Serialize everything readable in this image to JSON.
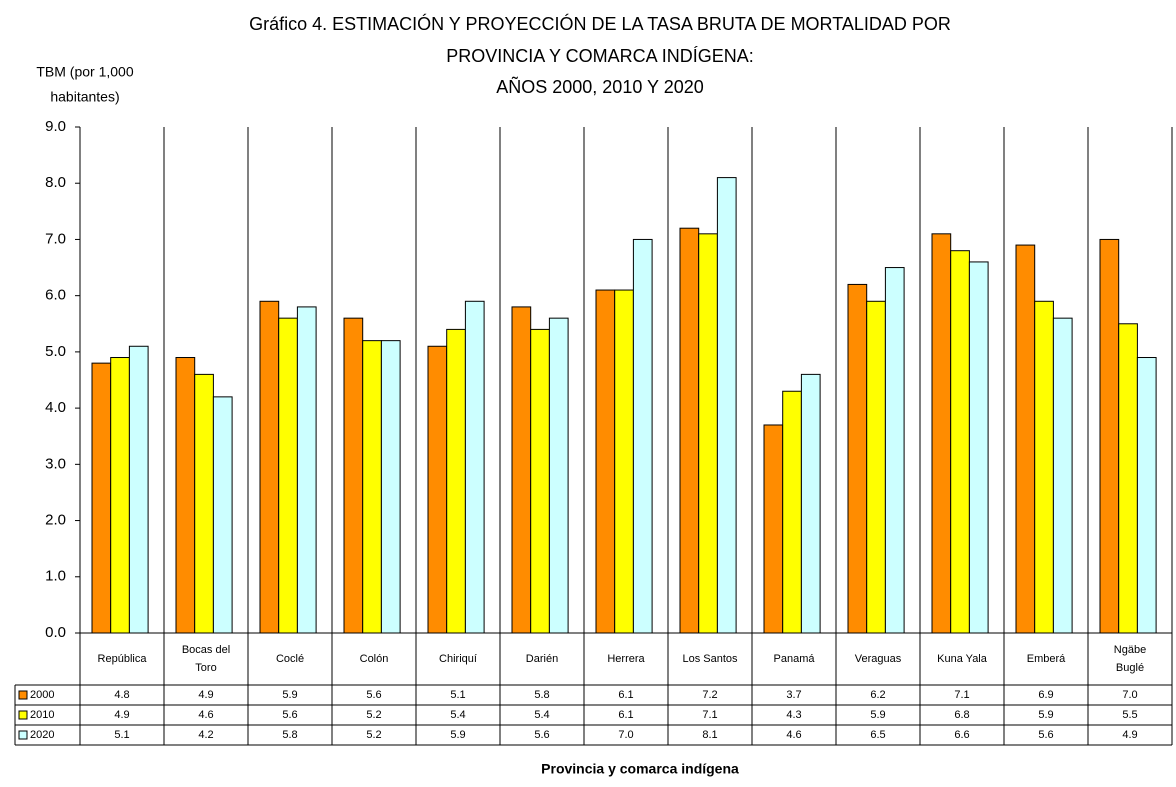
{
  "chart_data": {
    "type": "bar",
    "title": [
      "Gráfico 4. ESTIMACIÓN Y PROYECCIÓN DE LA TASA BRUTA DE MORTALIDAD POR",
      "PROVINCIA  Y COMARCA INDÍGENA:",
      "AÑOS 2000, 2010 Y 2020"
    ],
    "y_label": [
      "TBM (por 1,000",
      "habitantes)"
    ],
    "x_label": "Provincia y comarca indígena",
    "categories": [
      "República",
      "Bocas del Toro",
      "Coclé",
      "Colón",
      "Chiriquí",
      "Darién",
      "Herrera",
      "Los Santos",
      "Panamá",
      "Veraguas",
      "Kuna Yala",
      "Emberá",
      "Ngäbe Buglé"
    ],
    "series": [
      {
        "name": "2000",
        "color": "#ff8c00",
        "values": [
          4.8,
          4.9,
          5.9,
          5.6,
          5.1,
          5.8,
          6.1,
          7.2,
          3.7,
          6.2,
          7.1,
          6.9,
          7.0
        ],
        "value_labels": [
          "4.8",
          "4.9",
          "5.9",
          "5.6",
          "5.1",
          "5.8",
          "6.1",
          "7.2",
          "3.7",
          "6.2",
          "7.1",
          "6.9",
          "7.0"
        ]
      },
      {
        "name": "2010",
        "color": "#ffff00",
        "values": [
          4.9,
          4.6,
          5.6,
          5.2,
          5.4,
          5.4,
          6.1,
          7.1,
          4.3,
          5.9,
          6.8,
          5.9,
          5.5
        ],
        "value_labels": [
          "4.9",
          "4.6",
          "5.6",
          "5.2",
          "5.4",
          "5.4",
          "6.1",
          "7.1",
          "4.3",
          "5.9",
          "6.8",
          "5.9",
          "5.5"
        ]
      },
      {
        "name": "2020",
        "color": "#ccffff",
        "values": [
          5.1,
          4.2,
          5.8,
          5.2,
          5.9,
          5.6,
          7.0,
          8.1,
          4.6,
          6.5,
          6.6,
          5.6,
          4.9
        ],
        "value_labels": [
          "5.1",
          "4.2",
          "5.8",
          "5.2",
          "5.9",
          "5.6",
          "7.0",
          "8.1",
          "4.6",
          "6.5",
          "6.6",
          "5.6",
          "4.9"
        ]
      }
    ],
    "ylim": [
      0,
      9
    ],
    "yticks": [
      {
        "value": 0,
        "label": "0.0"
      },
      {
        "value": 1,
        "label": "1.0"
      },
      {
        "value": 2,
        "label": "2.0"
      },
      {
        "value": 3,
        "label": "3.0"
      },
      {
        "value": 4,
        "label": "4.0"
      },
      {
        "value": 5,
        "label": "5.0"
      },
      {
        "value": 6,
        "label": "6.0"
      },
      {
        "value": 7,
        "label": "7.0"
      },
      {
        "value": 8,
        "label": "8.0"
      },
      {
        "value": 9,
        "label": "9.0"
      }
    ]
  }
}
